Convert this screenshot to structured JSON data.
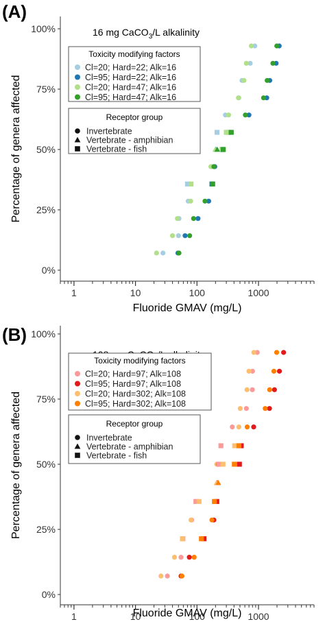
{
  "chart_data": [
    {
      "panel_label": "(A)",
      "type": "scatter",
      "title": "16 mg CaCO3/L alkalinity",
      "title_parts": {
        "pre": "16 mg CaCO",
        "sub": "3",
        "post": "/L alkalinity"
      },
      "xlabel": "Fluoride GMAV (mg/L)",
      "ylabel": "Percentage of genera affected",
      "x_scale": "log",
      "xlim": [
        0.6,
        8000
      ],
      "ylim": [
        0,
        100
      ],
      "x_ticks": [
        1,
        10,
        100,
        1000
      ],
      "x_tick_labels": [
        "1",
        "10",
        "100",
        "1000"
      ],
      "y_ticks": [
        0,
        25,
        50,
        75,
        100
      ],
      "y_tick_labels": [
        "0%",
        "25%",
        "50%",
        "75%",
        "100%"
      ],
      "grid": false,
      "legend_placement": "top-left",
      "legend_color_title": "Toxicity modifying factors",
      "legend_shape_title": "Receptor group",
      "series": [
        {
          "name": "Cl=20; Hard=22; Alk=16",
          "color": "#a6cee3"
        },
        {
          "name": "Cl=95; Hard=22; Alk=16",
          "color": "#1f78b4"
        },
        {
          "name": "Cl=20; Hard=47; Alk=16",
          "color": "#b2df8a"
        },
        {
          "name": "Cl=95; Hard=47; Alk=16",
          "color": "#33a02c"
        }
      ],
      "groups": [
        {
          "name": "Invertebrate",
          "shape": "circle"
        },
        {
          "name": "Vertebrate - amphibian",
          "shape": "triangle"
        },
        {
          "name": "Vertebrate - fish",
          "shape": "square"
        }
      ],
      "rows": [
        {
          "y": 7.1,
          "group": "Invertebrate",
          "x": [
            28,
            49,
            22,
            51
          ]
        },
        {
          "y": 14.3,
          "group": "Invertebrate",
          "x": [
            50,
            64,
            40,
            76
          ]
        },
        {
          "y": 21.4,
          "group": "Invertebrate",
          "x": [
            51,
            104,
            48,
            88
          ]
        },
        {
          "y": 28.6,
          "group": "Invertebrate",
          "x": [
            72,
            155,
            79,
            135
          ]
        },
        {
          "y": 35.7,
          "group": "Vertebrate - fish",
          "x": [
            70,
            175,
            80,
            180
          ]
        },
        {
          "y": 42.9,
          "group": "Invertebrate",
          "x": [
            175,
            195,
            168,
            188
          ]
        },
        {
          "y": 50.0,
          "group": "Vertebrate - fish",
          "x": [
            270,
            258,
            255,
            266
          ]
        },
        {
          "y": 50.0,
          "group": "Vertebrate - amphibian",
          "x": [
            215,
            202,
            198,
            213
          ]
        },
        {
          "y": 57.1,
          "group": "Vertebrate - fish",
          "x": [
            212,
            325,
            300,
            361
          ]
        },
        {
          "y": 64.3,
          "group": "Invertebrate",
          "x": [
            290,
            700,
            327,
            612
          ]
        },
        {
          "y": 71.4,
          "group": "Invertebrate",
          "x": [
            478,
            1362,
            472,
            1210
          ]
        },
        {
          "y": 78.6,
          "group": "Invertebrate",
          "x": [
            540,
            1525,
            580,
            1385
          ]
        },
        {
          "y": 85.7,
          "group": "Invertebrate",
          "x": [
            734,
            1935,
            635,
            1715
          ]
        },
        {
          "y": 92.9,
          "group": "Invertebrate",
          "x": [
            872,
            2175,
            765,
            1985
          ]
        }
      ]
    },
    {
      "panel_label": "(B)",
      "type": "scatter",
      "title": "108 mg CaCO3/L alkalinity",
      "title_parts": {
        "pre": "108 mg CaCO",
        "sub": "3",
        "post": "/L alkalinity"
      },
      "xlabel": "Fluoride GMAV (mg/L)",
      "ylabel": "Percentage of genera affected",
      "x_scale": "log",
      "xlim": [
        0.6,
        8000
      ],
      "ylim": [
        0,
        100
      ],
      "x_ticks": [
        1,
        10,
        100,
        1000
      ],
      "x_tick_labels": [
        "1",
        "10",
        "100",
        "1000"
      ],
      "y_ticks": [
        0,
        25,
        50,
        75,
        100
      ],
      "y_tick_labels": [
        "0%",
        "25%",
        "50%",
        "75%",
        "100%"
      ],
      "grid": false,
      "legend_placement": "top-left",
      "legend_color_title": "Toxicity modifying factors",
      "legend_shape_title": "Receptor group",
      "series": [
        {
          "name": "Cl=20; Hard=97; Alk=108",
          "color": "#fb9a99"
        },
        {
          "name": "Cl=95; Hard=97; Alk=108",
          "color": "#e31a1c"
        },
        {
          "name": "Cl=20; Hard=302; Alk=108",
          "color": "#fdbf6f"
        },
        {
          "name": "Cl=95; Hard=302; Alk=108",
          "color": "#ff7f00"
        }
      ],
      "groups": [
        {
          "name": "Invertebrate",
          "shape": "circle"
        },
        {
          "name": "Vertebrate - amphibian",
          "shape": "triangle"
        },
        {
          "name": "Vertebrate - fish",
          "shape": "square"
        }
      ],
      "rows": [
        {
          "y": 7.1,
          "group": "Invertebrate",
          "x": [
            33,
            55,
            26,
            57
          ]
        },
        {
          "y": 14.3,
          "group": "Invertebrate",
          "x": [
            55,
            75,
            43,
            90
          ]
        },
        {
          "y": 21.4,
          "group": "Vertebrate - fish",
          "x": [
            59,
            130,
            58,
            118
          ]
        },
        {
          "y": 28.6,
          "group": "Invertebrate",
          "x": [
            82,
            188,
            80,
            175
          ]
        },
        {
          "y": 35.7,
          "group": "Vertebrate - fish",
          "x": [
            96,
            210,
            108,
            192
          ]
        },
        {
          "y": 42.9,
          "group": "Vertebrate - amphibian",
          "x": [
            218,
            212,
            208,
            222
          ]
        },
        {
          "y": 50.0,
          "group": "Invertebrate",
          "x": [
            218,
            214,
            209,
            222
          ]
        },
        {
          "y": 50.0,
          "group": "Vertebrate - fish",
          "x": [
            228,
            490,
            265,
            405
          ]
        },
        {
          "y": 57.1,
          "group": "Vertebrate - fish",
          "x": [
            245,
            525,
            410,
            480
          ]
        },
        {
          "y": 64.3,
          "group": "Invertebrate",
          "x": [
            375,
            835,
            480,
            655
          ]
        },
        {
          "y": 71.4,
          "group": "Invertebrate",
          "x": [
            635,
            1510,
            505,
            1285
          ]
        },
        {
          "y": 78.6,
          "group": "Invertebrate",
          "x": [
            795,
            1820,
            650,
            1520
          ]
        },
        {
          "y": 85.7,
          "group": "Invertebrate",
          "x": [
            800,
            2190,
            700,
            1780
          ]
        },
        {
          "y": 92.9,
          "group": "Invertebrate",
          "x": [
            955,
            2560,
            840,
            1975
          ]
        }
      ]
    }
  ]
}
